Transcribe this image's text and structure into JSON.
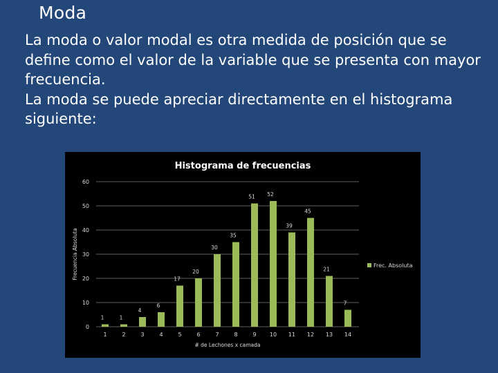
{
  "slide": {
    "title": "Moda",
    "paragraphs": [
      "La moda o valor modal es otra medida de posición que se define como el valor de la variable que se presenta con mayor frecuencia.",
      "La moda se puede apreciar directamente en el histograma siguiente:"
    ]
  },
  "colors": {
    "background": "#24477a",
    "bar": "#9bbb59",
    "chart_bg": "#000000",
    "axis_text": "#d9d9d9"
  },
  "chart_data": {
    "type": "bar",
    "title": "Histograma de frecuencias",
    "xlabel": "# de Lechones x camada",
    "ylabel": "Frecuencia Absoluta",
    "categories": [
      "1",
      "2",
      "3",
      "4",
      "5",
      "6",
      "7",
      "8",
      "9",
      "10",
      "11",
      "12",
      "13",
      "14"
    ],
    "series": [
      {
        "name": "Frec. Absoluta",
        "values": [
          1,
          1,
          4,
          6,
          17,
          20,
          30,
          35,
          51,
          52,
          39,
          45,
          21,
          7
        ]
      }
    ],
    "ylim": [
      0,
      60
    ],
    "yticks": [
      0,
      10,
      20,
      30,
      40,
      50,
      60
    ],
    "grid": true,
    "legend_position": "right",
    "data_labels": true
  }
}
